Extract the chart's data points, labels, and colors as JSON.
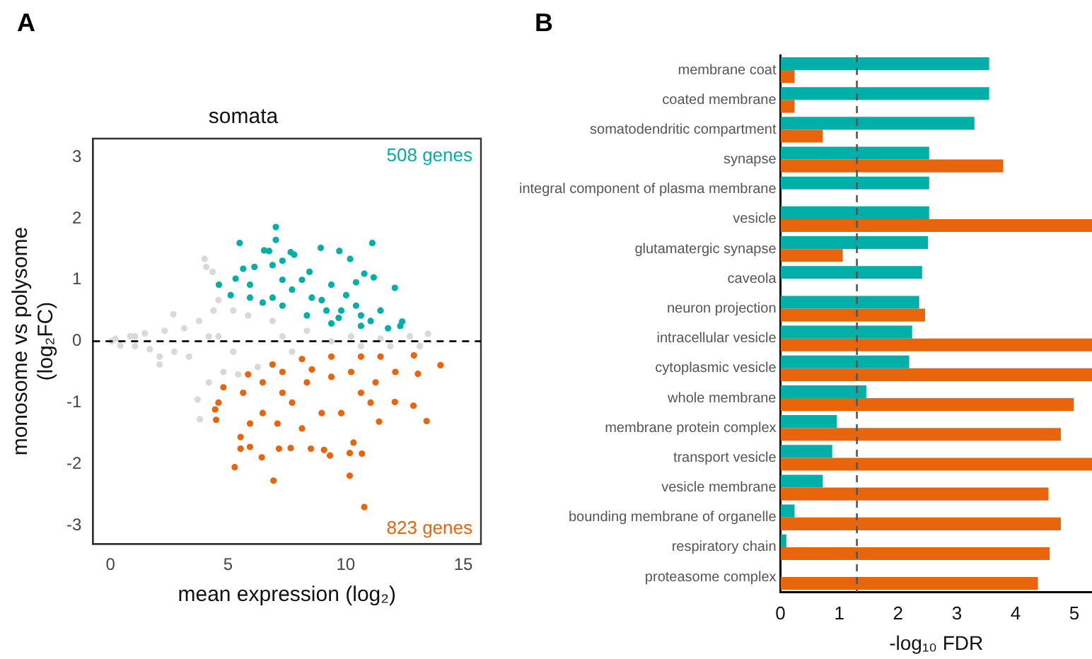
{
  "chart_data": [
    {
      "type": "scatter",
      "title": "somata",
      "xlabel": "mean expression (log₂)",
      "ylabel": "monosome vs polysome\n(log₂FC)",
      "annotations": [
        "A"
      ],
      "marker": "circle",
      "legend": false,
      "grid": false,
      "xlim": [
        -0.75,
        15.75
      ],
      "ylim": [
        -3.3,
        3.3
      ],
      "xticks": [
        0,
        5,
        10,
        15
      ],
      "yticks": [
        -3,
        -2,
        -1,
        0,
        1,
        2,
        3
      ],
      "ref_lines": [
        {
          "axis": "y",
          "value": 0,
          "line_style": "dashed",
          "color": "#000000"
        }
      ],
      "series": [
        {
          "color": "#d9d9d9",
          "x": [
            0.04,
            0.21,
            0.42,
            0.84,
            1.04,
            1.46,
            1.67,
            2.09,
            2.3,
            2.71,
            2.67,
            3.13,
            3.34,
            3.76,
            4.0,
            4.07,
            4.34,
            3.8,
            3.7,
            4.18,
            4.38,
            4.59,
            4.8,
            5.22,
            5.43,
            5.85,
            6.26,
            6.89,
            7.72,
            8.35,
            9.39,
            10.23,
            10.65,
            11.48,
            11.9,
            12.73,
            13.15,
            13.5,
            2.09,
            7.31,
            5.22,
            4.18,
            1.04,
            4.59
          ],
          "values": [
            0,
            0.04,
            -0.07,
            0.08,
            -0.08,
            0.13,
            -0.13,
            -0.25,
            0.17,
            -0.17,
            0.44,
            0.21,
            -0.25,
            0.33,
            1.34,
            1.21,
            1.13,
            -1.27,
            -0.95,
            -0.67,
            0.5,
            0.67,
            -0.5,
            0.5,
            -0.54,
            0.42,
            -0.42,
            0.33,
            -0.17,
            0.17,
            0,
            0.08,
            -0.08,
            0.04,
            -0.08,
            0.08,
            -0.08,
            0.12,
            -0.38,
            0.08,
            -0.17,
            0.08,
            0.08,
            0.08
          ]
        },
        {
          "name": "508 genes",
          "color": "#00afa7",
          "x": [
            7.03,
            7.03,
            5.49,
            11.13,
            8.94,
            9.73,
            6.53,
            6.74,
            7.66,
            7.81,
            10.19,
            7.31,
            6.12,
            6.89,
            5.64,
            4.61,
            8.46,
            10.79,
            11.19,
            12.09,
            10.44,
            5.11,
            5.32,
            5.93,
            7.31,
            9.39,
            11.48,
            12.32,
            12.4,
            11.8,
            11.06,
            10.65,
            9.7,
            8.35,
            7.31,
            6.47,
            7.72,
            8.98,
            9.81,
            10.44,
            8.14,
            6.89,
            9.18,
            10.02,
            8.56,
            5.93,
            10.65,
            9.39
          ],
          "values": [
            1.86,
            1.65,
            1.6,
            1.6,
            1.52,
            1.47,
            1.48,
            1.47,
            1.45,
            1.41,
            1.34,
            1.31,
            1.21,
            1.24,
            1.18,
            0.92,
            1.13,
            1.1,
            1.04,
            0.87,
            0.96,
            0.75,
            1.02,
            0.92,
            1.0,
            0.92,
            0.5,
            0.25,
            0.32,
            0.21,
            0.33,
            0.25,
            0.38,
            0.42,
            0.58,
            0.63,
            0.84,
            0.67,
            0.5,
            0.58,
            1.0,
            0.71,
            0.5,
            0.75,
            0.71,
            0.71,
            0.42,
            0.29
          ]
        },
        {
          "name": "823 genes",
          "color": "#e8650c",
          "x": [
            10.79,
            6.93,
            10.17,
            5.28,
            9.33,
            6.43,
            10.17,
            10.69,
            13.44,
            14.03,
            12.9,
            13.07,
            12.88,
            12.09,
            11.42,
            4.45,
            4.49,
            5.53,
            5.53,
            5.93,
            7.16,
            7.66,
            8.52,
            9.08,
            10.33,
            11.27,
            11.48,
            10.65,
            9.39,
            8.14,
            6.89,
            5.85,
            4.8,
            4.59,
            5.64,
            6.47,
            7.31,
            8.35,
            9.39,
            10.23,
            10.65,
            7.72,
            6.47,
            8.98,
            8.14,
            7.1,
            5.93,
            9.81,
            11.06,
            12.11,
            8.56,
            7.31
          ],
          "values": [
            -2.7,
            -2.27,
            -2.19,
            -2.05,
            -1.86,
            -1.89,
            -1.82,
            -1.83,
            -1.3,
            -0.39,
            -0.23,
            -0.53,
            -1.05,
            -0.99,
            -1.31,
            -1.11,
            -1.28,
            -1.56,
            -1.75,
            -1.72,
            -1.75,
            -1.74,
            -1.75,
            -1.77,
            -1.65,
            -0.67,
            -0.25,
            -0.25,
            -0.25,
            -0.29,
            -0.38,
            -0.54,
            -0.75,
            -1.0,
            -0.84,
            -0.67,
            -0.84,
            -0.67,
            -0.58,
            -0.5,
            -0.84,
            -1.0,
            -1.17,
            -1.17,
            -1.42,
            -1.34,
            -1.34,
            -1.17,
            -1.0,
            -0.5,
            -0.46,
            -0.5
          ]
        }
      ]
    },
    {
      "type": "bar",
      "orientation": "horizontal",
      "xlabel": "-log₁₀ FDR",
      "annotations": [
        "B"
      ],
      "legend": false,
      "grid": false,
      "categories": [
        "membrane coat",
        "coated membrane",
        "somatodendritic compartment",
        "synapse",
        "integral component of plasma membrane",
        "vesicle",
        "glutamatergic synapse",
        "caveola",
        "neuron projection",
        "intracellular vesicle",
        "cytoplasmic vesicle",
        "whole membrane",
        "membrane protein complex",
        "transport vesicle",
        "vesicle membrane",
        "bounding membrane of organelle",
        "respiratory chain",
        "proteasome complex"
      ],
      "xlim": [
        0,
        5.3
      ],
      "xticks": [
        0,
        1,
        2,
        3,
        4,
        5
      ],
      "ref_lines": [
        {
          "axis": "x",
          "value": 1.3,
          "line_style": "dashed",
          "color": "#555555"
        }
      ],
      "series": [
        {
          "color": "#00afa7",
          "values": [
            3.55,
            3.55,
            3.3,
            2.53,
            2.53,
            2.53,
            2.51,
            2.41,
            2.36,
            2.24,
            2.19,
            1.46,
            0.96,
            0.88,
            0.72,
            0.24,
            0.1,
            null
          ]
        },
        {
          "color": "#e8650c",
          "values": [
            0.24,
            0.24,
            0.72,
            3.79,
            null,
            5.3,
            1.06,
            null,
            2.46,
            5.3,
            5.3,
            4.99,
            4.77,
            5.3,
            4.56,
            4.77,
            4.58,
            4.38
          ]
        }
      ]
    }
  ]
}
